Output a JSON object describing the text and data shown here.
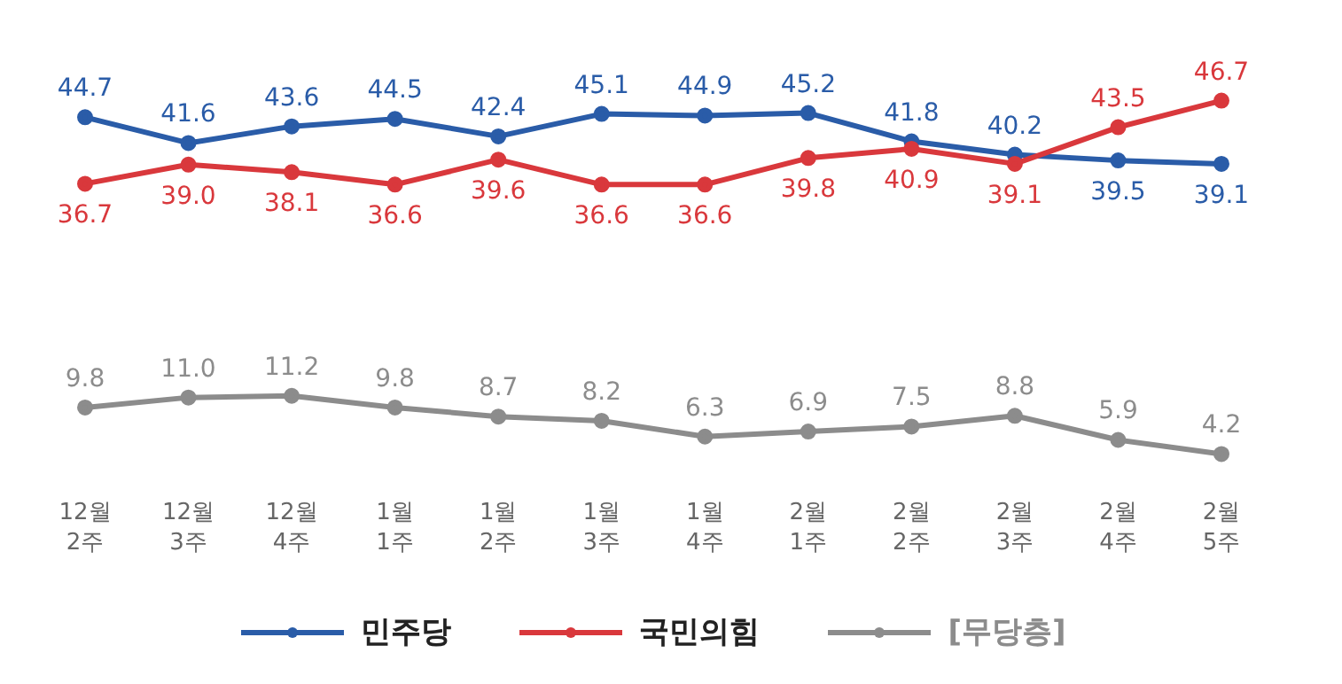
{
  "chart_data": {
    "type": "line",
    "categories": [
      "12월 2주",
      "12월 3주",
      "12월 4주",
      "1월 1주",
      "1월 2주",
      "1월 3주",
      "1월 4주",
      "2월 1주",
      "2월 2주",
      "2월 3주",
      "2월 4주",
      "2월 5주"
    ],
    "series": [
      {
        "name": "민주당",
        "color": "#2a5ca8",
        "values": [
          44.7,
          41.6,
          43.6,
          44.5,
          42.4,
          45.1,
          44.9,
          45.2,
          41.8,
          40.2,
          39.5,
          39.1
        ],
        "value_labels": [
          "44.7",
          "41.6",
          "43.6",
          "44.5",
          "42.4",
          "45.1",
          "44.9",
          "45.2",
          "41.8",
          "40.2",
          "39.5",
          "39.1"
        ]
      },
      {
        "name": "국민의힘",
        "color": "#d9383c",
        "values": [
          36.7,
          39.0,
          38.1,
          36.6,
          39.6,
          36.6,
          36.6,
          39.8,
          40.9,
          39.1,
          43.5,
          46.7
        ],
        "value_labels": [
          "36.7",
          "39.0",
          "38.1",
          "36.6",
          "39.6",
          "36.6",
          "36.6",
          "39.8",
          "40.9",
          "39.1",
          "43.5",
          "46.7"
        ]
      },
      {
        "name": "[무당층]",
        "color": "#8c8c8c",
        "values": [
          9.8,
          11.0,
          11.2,
          9.8,
          8.7,
          8.2,
          6.3,
          6.9,
          7.5,
          8.8,
          5.9,
          4.2
        ],
        "value_labels": [
          "9.8",
          "11.0",
          "11.2",
          "9.8",
          "8.7",
          "8.2",
          "6.3",
          "6.9",
          "7.5",
          "8.8",
          "5.9",
          "4.2"
        ]
      }
    ],
    "legend": "bottom",
    "marker": "circle",
    "line_style": "solid"
  }
}
